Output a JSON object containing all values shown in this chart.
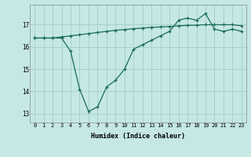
{
  "title": "",
  "xlabel": "Humidex (Indice chaleur)",
  "ylabel": "",
  "background_color": "#c5e8e5",
  "grid_color": "#a8d0cc",
  "line_color": "#1a6b5a",
  "x_values": [
    0,
    1,
    2,
    3,
    4,
    5,
    6,
    7,
    8,
    9,
    10,
    11,
    12,
    13,
    14,
    15,
    16,
    17,
    18,
    19,
    20,
    21,
    22,
    23
  ],
  "line1": [
    16.4,
    16.4,
    16.4,
    16.4,
    15.8,
    14.1,
    13.1,
    13.3,
    14.2,
    14.5,
    15.0,
    15.9,
    16.1,
    16.3,
    16.5,
    16.7,
    17.2,
    17.3,
    17.2,
    17.5,
    16.8,
    16.7,
    16.8,
    16.7
  ],
  "line2": [
    16.4,
    16.4,
    16.4,
    16.45,
    16.5,
    16.55,
    16.6,
    16.65,
    16.7,
    16.75,
    16.78,
    16.82,
    16.85,
    16.88,
    16.9,
    16.92,
    16.95,
    16.97,
    16.98,
    17.0,
    17.0,
    17.0,
    17.0,
    16.95
  ],
  "ylim": [
    12.6,
    17.9
  ],
  "yticks": [
    13,
    14,
    15,
    16,
    17
  ],
  "xticks": [
    0,
    1,
    2,
    3,
    4,
    5,
    6,
    7,
    8,
    9,
    10,
    11,
    12,
    13,
    14,
    15,
    16,
    17,
    18,
    19,
    20,
    21,
    22,
    23
  ]
}
